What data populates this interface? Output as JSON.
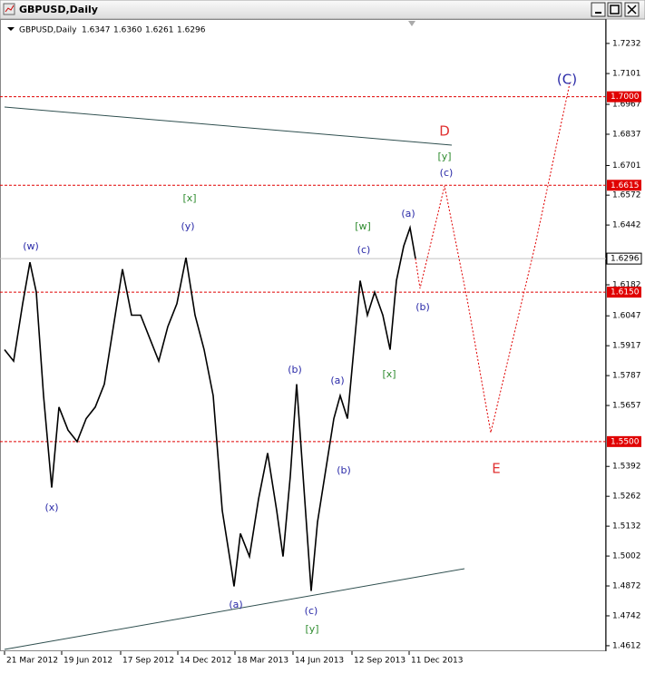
{
  "window": {
    "title": "GBPUSD,Daily"
  },
  "chart_data": {
    "type": "line",
    "symbol": "GBPUSD,Daily",
    "ohlc": [
      "1.6347",
      "1.6360",
      "1.6261",
      "1.6296"
    ],
    "x": [
      0,
      10,
      20,
      28,
      35,
      43,
      52,
      60,
      70,
      80,
      90,
      100,
      110,
      120,
      130,
      140,
      150,
      160,
      170,
      180,
      190,
      200,
      210,
      220,
      230,
      240,
      250,
      253,
      260,
      270,
      280,
      290,
      300,
      307,
      315,
      322,
      330,
      338,
      345,
      353,
      363,
      370,
      378,
      385,
      392,
      400,
      408,
      417,
      425,
      432,
      440,
      447,
      453
    ],
    "values": [
      1.59,
      1.585,
      1.61,
      1.628,
      1.615,
      1.57,
      1.53,
      1.565,
      1.555,
      1.55,
      1.56,
      1.565,
      1.575,
      1.6,
      1.625,
      1.605,
      1.605,
      1.595,
      1.585,
      1.6,
      1.61,
      1.63,
      1.605,
      1.59,
      1.57,
      1.52,
      1.495,
      1.487,
      1.51,
      1.5,
      1.525,
      1.545,
      1.52,
      1.5,
      1.535,
      1.575,
      1.53,
      1.485,
      1.515,
      1.535,
      1.56,
      1.57,
      1.56,
      1.59,
      1.62,
      1.605,
      1.615,
      1.605,
      1.59,
      1.62,
      1.635,
      1.643,
      1.6296
    ],
    "color": "#000000",
    "xlim": [
      -5,
      663
    ],
    "xticks": [
      {
        "value": 0,
        "label": "21 Mar 2012"
      },
      {
        "value": 63,
        "label": "19 Jun 2012"
      },
      {
        "value": 128,
        "label": "17 Sep 2012"
      },
      {
        "value": 191,
        "label": "14 Dec 2012"
      },
      {
        "value": 254,
        "label": "18 Mar 2013"
      },
      {
        "value": 318,
        "label": "14 Jun 2013"
      },
      {
        "value": 383,
        "label": "12 Sep 2013"
      },
      {
        "value": 446,
        "label": "11 Dec 2013"
      }
    ],
    "ylim": [
      1.4588,
      1.7342
    ],
    "yticks": [
      1.7232,
      1.7101,
      1.6967,
      1.6837,
      1.6701,
      1.6572,
      1.6442,
      1.6182,
      1.6047,
      1.5917,
      1.5787,
      1.5657,
      1.5392,
      1.5262,
      1.5132,
      1.5002,
      1.4872,
      1.4742,
      1.4612
    ],
    "levels": [
      {
        "value": 1.7,
        "label": "1.7000"
      },
      {
        "value": 1.6615,
        "label": "1.6615"
      },
      {
        "value": 1.615,
        "label": "1.6150"
      },
      {
        "value": 1.55,
        "label": "1.5500"
      }
    ],
    "level_color": "#e00000",
    "current": {
      "value": 1.6296,
      "label": "1.6296"
    },
    "annotations": [
      {
        "text": "(w)",
        "color": "#2a2aa8"
      },
      {
        "text": "(x)",
        "color": "#2a2aa8"
      },
      {
        "text": "[x]",
        "color": "#2e8b2e"
      },
      {
        "text": "(y)",
        "color": "#2a2aa8"
      },
      {
        "text": "(a)",
        "color": "#2a2aa8"
      },
      {
        "text": "(c)",
        "color": "#2a2aa8"
      },
      {
        "text": "[y]",
        "color": "#2e8b2e"
      },
      {
        "text": "(b)",
        "color": "#2a2aa8"
      },
      {
        "text": "(a)",
        "color": "#2a2aa8"
      },
      {
        "text": "(b)",
        "color": "#2a2aa8"
      },
      {
        "text": "(c)",
        "color": "#2a2aa8"
      },
      {
        "text": "[w]",
        "color": "#2e8b2e"
      },
      {
        "text": "[x]",
        "color": "#2e8b2e"
      },
      {
        "text": "(a)",
        "color": "#2a2aa8"
      },
      {
        "text": "(b)",
        "color": "#2a2aa8"
      },
      {
        "text": "(c)",
        "color": "#2a2aa8"
      },
      {
        "text": "[y]",
        "color": "#2e8b2e"
      },
      {
        "text": "D",
        "color": "#e03030"
      },
      {
        "text": "E",
        "color": "#e03030"
      },
      {
        "text": "(C)",
        "color": "#2a2aa8"
      }
    ]
  }
}
